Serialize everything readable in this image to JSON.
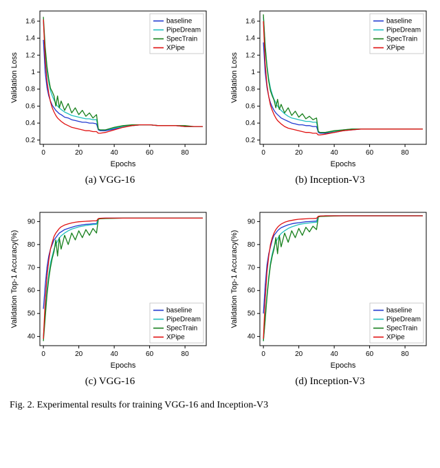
{
  "figure_caption_prefix": "Fig. 2.",
  "figure_caption_rest": "  Experimental results for training VGG-16 and Inception-V3",
  "colors": {
    "baseline": "#2038d0",
    "PipeDream": "#1fbfbf",
    "SpecTrain": "#157f1a",
    "XPipe": "#e01010",
    "axis": "#000000",
    "tick": "#000000",
    "spine": "#000000",
    "bg": "#ffffff",
    "legend_border": "#bfbfbf"
  },
  "series_order": [
    "baseline",
    "PipeDream",
    "SpecTrain",
    "XPipe"
  ],
  "series_labels": {
    "baseline": "baseline",
    "PipeDream": "PipeDream",
    "SpecTrain": "SpecTrain",
    "XPipe": "XPipe"
  },
  "line_width": 1.3,
  "axis_fontsize": 11,
  "tick_fontsize": 10,
  "legend_fontsize": 10,
  "panels": {
    "a": {
      "sub_label": "(a) VGG-16",
      "xlabel": "Epochs",
      "ylabel": "Validation Loss",
      "xlim": [
        -2,
        92
      ],
      "ylim": [
        0.15,
        1.72
      ],
      "xticks": [
        0,
        20,
        40,
        60,
        80
      ],
      "yticks": [
        0.2,
        0.4,
        0.6,
        0.8,
        1.0,
        1.2,
        1.4,
        1.6
      ],
      "legend_pos": "upper-right",
      "x": [
        0,
        1,
        2,
        3,
        4,
        5,
        6,
        7,
        8,
        9,
        10,
        12,
        14,
        16,
        18,
        20,
        22,
        24,
        26,
        28,
        30,
        31,
        32,
        35,
        40,
        45,
        50,
        55,
        60,
        65,
        70,
        75,
        80,
        85,
        90
      ],
      "series": {
        "baseline": [
          1.38,
          1.0,
          0.82,
          0.72,
          0.66,
          0.61,
          0.58,
          0.55,
          0.53,
          0.51,
          0.5,
          0.47,
          0.46,
          0.44,
          0.43,
          0.42,
          0.41,
          0.41,
          0.4,
          0.4,
          0.39,
          0.32,
          0.31,
          0.31,
          0.33,
          0.36,
          0.37,
          0.38,
          0.38,
          0.37,
          0.37,
          0.37,
          0.36,
          0.36,
          0.36
        ],
        "PipeDream": [
          1.6,
          1.25,
          1.02,
          0.88,
          0.78,
          0.72,
          0.67,
          0.63,
          0.6,
          0.58,
          0.56,
          0.53,
          0.51,
          0.49,
          0.48,
          0.47,
          0.46,
          0.45,
          0.45,
          0.44,
          0.44,
          0.33,
          0.32,
          0.32,
          0.34,
          0.36,
          0.37,
          0.38,
          0.38,
          0.37,
          0.37,
          0.37,
          0.36,
          0.36,
          0.36
        ],
        "SpecTrain": [
          1.65,
          1.3,
          1.07,
          0.92,
          0.81,
          0.77,
          0.72,
          0.6,
          0.72,
          0.58,
          0.66,
          0.55,
          0.63,
          0.52,
          0.58,
          0.5,
          0.55,
          0.48,
          0.52,
          0.46,
          0.5,
          0.33,
          0.32,
          0.32,
          0.35,
          0.37,
          0.38,
          0.38,
          0.38,
          0.37,
          0.37,
          0.37,
          0.37,
          0.36,
          0.36
        ],
        "XPipe": [
          1.62,
          1.15,
          0.9,
          0.75,
          0.65,
          0.58,
          0.53,
          0.49,
          0.46,
          0.44,
          0.42,
          0.39,
          0.37,
          0.35,
          0.34,
          0.33,
          0.32,
          0.31,
          0.31,
          0.3,
          0.3,
          0.28,
          0.28,
          0.29,
          0.32,
          0.35,
          0.37,
          0.38,
          0.38,
          0.37,
          0.37,
          0.37,
          0.36,
          0.36,
          0.36
        ]
      }
    },
    "b": {
      "sub_label": "(b) Inception-V3",
      "xlabel": "Epochs",
      "ylabel": "Validation Loss",
      "xlim": [
        -2,
        92
      ],
      "ylim": [
        0.15,
        1.72
      ],
      "xticks": [
        0,
        20,
        40,
        60,
        80
      ],
      "yticks": [
        0.2,
        0.4,
        0.6,
        0.8,
        1.0,
        1.2,
        1.4,
        1.6
      ],
      "legend_pos": "upper-right",
      "x": [
        0,
        1,
        2,
        3,
        4,
        5,
        6,
        7,
        8,
        9,
        10,
        12,
        14,
        16,
        18,
        20,
        22,
        24,
        26,
        28,
        30,
        31,
        32,
        35,
        40,
        45,
        50,
        55,
        60,
        65,
        70,
        75,
        80,
        85,
        90
      ],
      "series": {
        "baseline": [
          1.35,
          1.0,
          0.82,
          0.71,
          0.64,
          0.59,
          0.55,
          0.52,
          0.5,
          0.48,
          0.46,
          0.44,
          0.42,
          0.4,
          0.39,
          0.38,
          0.38,
          0.37,
          0.37,
          0.36,
          0.36,
          0.29,
          0.28,
          0.28,
          0.29,
          0.31,
          0.32,
          0.33,
          0.33,
          0.33,
          0.33,
          0.33,
          0.33,
          0.33,
          0.33
        ],
        "PipeDream": [
          1.65,
          1.32,
          1.08,
          0.92,
          0.81,
          0.74,
          0.68,
          0.64,
          0.6,
          0.57,
          0.55,
          0.51,
          0.48,
          0.46,
          0.45,
          0.44,
          0.43,
          0.42,
          0.42,
          0.41,
          0.41,
          0.3,
          0.29,
          0.29,
          0.3,
          0.32,
          0.33,
          0.33,
          0.33,
          0.33,
          0.33,
          0.33,
          0.33,
          0.33,
          0.33
        ],
        "SpecTrain": [
          1.68,
          1.3,
          1.06,
          0.89,
          0.78,
          0.72,
          0.67,
          0.58,
          0.68,
          0.56,
          0.62,
          0.52,
          0.58,
          0.49,
          0.54,
          0.47,
          0.51,
          0.45,
          0.48,
          0.44,
          0.46,
          0.3,
          0.29,
          0.29,
          0.31,
          0.32,
          0.33,
          0.33,
          0.33,
          0.33,
          0.33,
          0.33,
          0.33,
          0.33,
          0.33
        ],
        "XPipe": [
          1.6,
          1.1,
          0.85,
          0.71,
          0.61,
          0.55,
          0.5,
          0.46,
          0.43,
          0.41,
          0.39,
          0.36,
          0.34,
          0.33,
          0.32,
          0.31,
          0.3,
          0.29,
          0.29,
          0.28,
          0.28,
          0.26,
          0.26,
          0.27,
          0.29,
          0.31,
          0.32,
          0.33,
          0.33,
          0.33,
          0.33,
          0.33,
          0.33,
          0.33,
          0.33
        ]
      }
    },
    "c": {
      "sub_label": "(c) VGG-16",
      "xlabel": "Epochs",
      "ylabel": "Validation Top-1 Accuracy(%)",
      "xlim": [
        -2,
        92
      ],
      "ylim": [
        36,
        94
      ],
      "xticks": [
        0,
        20,
        40,
        60,
        80
      ],
      "yticks": [
        40,
        50,
        60,
        70,
        80,
        90
      ],
      "legend_pos": "lower-right",
      "x": [
        0,
        1,
        2,
        3,
        4,
        5,
        6,
        7,
        8,
        9,
        10,
        12,
        14,
        16,
        18,
        20,
        22,
        24,
        26,
        28,
        30,
        31,
        32,
        35,
        40,
        45,
        50,
        55,
        60,
        65,
        70,
        75,
        80,
        85,
        90
      ],
      "series": {
        "baseline": [
          52,
          62,
          70,
          75,
          78,
          80,
          82,
          83,
          84,
          85,
          85.5,
          86.5,
          87,
          87.5,
          88,
          88.3,
          88.6,
          88.8,
          88.9,
          89,
          89.1,
          91.2,
          91.4,
          91.5,
          91.5,
          91.5,
          91.5,
          91.5,
          91.5,
          91.5,
          91.5,
          91.5,
          91.5,
          91.5,
          91.5
        ],
        "PipeDream": [
          40,
          50,
          60,
          67,
          72,
          75,
          78,
          80,
          81.5,
          82.8,
          83.8,
          85,
          86,
          86.7,
          87.2,
          87.7,
          88,
          88.3,
          88.5,
          88.7,
          88.8,
          91.1,
          91.3,
          91.4,
          91.5,
          91.5,
          91.5,
          91.5,
          91.5,
          91.5,
          91.5,
          91.5,
          91.5,
          91.5,
          91.5
        ],
        "SpecTrain": [
          38,
          48,
          58,
          65,
          70,
          74,
          77,
          82,
          75,
          83,
          78,
          84,
          80,
          85,
          82,
          86,
          83,
          86.5,
          84,
          87,
          85,
          91.0,
          91.2,
          91.3,
          91.4,
          91.5,
          91.5,
          91.5,
          91.5,
          91.5,
          91.5,
          91.5,
          91.5,
          91.5,
          91.5
        ],
        "XPipe": [
          39,
          55,
          66,
          73,
          78,
          81,
          83.5,
          85,
          86,
          87,
          87.7,
          88.5,
          89,
          89.4,
          89.7,
          89.9,
          90,
          90.1,
          90.2,
          90.3,
          90.3,
          91.3,
          91.4,
          91.5,
          91.5,
          91.5,
          91.5,
          91.5,
          91.5,
          91.5,
          91.5,
          91.5,
          91.5,
          91.5,
          91.5
        ]
      }
    },
    "d": {
      "sub_label": "(d) Inception-V3",
      "xlabel": "Epochs",
      "ylabel": "Validation Top-1 Accuracy(%)",
      "xlim": [
        -2,
        92
      ],
      "ylim": [
        36,
        94
      ],
      "xticks": [
        0,
        20,
        40,
        60,
        80
      ],
      "yticks": [
        40,
        50,
        60,
        70,
        80,
        90
      ],
      "legend_pos": "lower-right",
      "x": [
        0,
        1,
        2,
        3,
        4,
        5,
        6,
        7,
        8,
        9,
        10,
        12,
        14,
        16,
        18,
        20,
        22,
        24,
        26,
        28,
        30,
        31,
        32,
        35,
        40,
        45,
        50,
        55,
        60,
        65,
        70,
        75,
        80,
        85,
        90
      ],
      "series": {
        "baseline": [
          50,
          62,
          71,
          76,
          79,
          82,
          84,
          85,
          86,
          86.7,
          87.3,
          88,
          88.6,
          89,
          89.3,
          89.5,
          89.7,
          89.9,
          90,
          90.1,
          90.2,
          92.2,
          92.4,
          92.5,
          92.5,
          92.5,
          92.5,
          92.5,
          92.5,
          92.5,
          92.5,
          92.5,
          92.5,
          92.5,
          92.5
        ],
        "PipeDream": [
          38,
          48,
          58,
          66,
          72,
          76,
          79,
          81,
          82.5,
          83.8,
          84.8,
          86,
          87,
          87.7,
          88.2,
          88.7,
          89,
          89.2,
          89.4,
          89.6,
          89.7,
          92.1,
          92.3,
          92.4,
          92.5,
          92.5,
          92.5,
          92.5,
          92.5,
          92.5,
          92.5,
          92.5,
          92.5,
          92.5,
          92.5
        ],
        "SpecTrain": [
          38,
          47,
          57,
          65,
          71,
          75,
          78,
          83,
          76,
          84,
          79,
          85,
          81,
          86,
          83,
          87,
          84,
          87.5,
          85.5,
          88,
          86.5,
          92.0,
          92.2,
          92.3,
          92.4,
          92.5,
          92.5,
          92.5,
          92.5,
          92.5,
          92.5,
          92.5,
          92.5,
          92.5,
          92.5
        ],
        "XPipe": [
          39,
          56,
          68,
          75,
          80,
          83,
          85,
          86.5,
          87.5,
          88.3,
          88.9,
          89.7,
          90.2,
          90.5,
          90.8,
          91,
          91.1,
          91.2,
          91.3,
          91.3,
          91.4,
          92.3,
          92.4,
          92.5,
          92.5,
          92.5,
          92.5,
          92.5,
          92.5,
          92.5,
          92.5,
          92.5,
          92.5,
          92.5,
          92.5
        ]
      }
    }
  }
}
